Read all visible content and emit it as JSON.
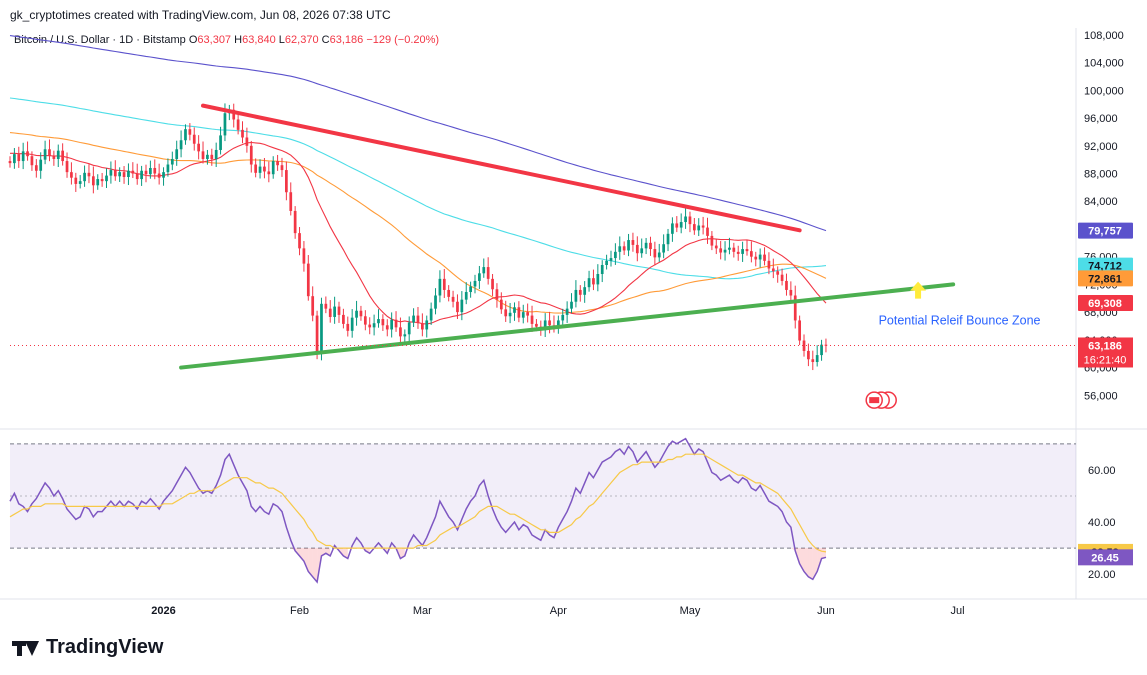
{
  "header": {
    "attribution": "gk_cryptotimes created with TradingView.com, Jun 08, 2026 07:38 UTC",
    "symbol": "Bitcoin / U.S. Dollar · 1D · Bitstamp",
    "open_label": "O",
    "open": "63,307",
    "high_label": "H",
    "high": "63,840",
    "low_label": "L",
    "low": "62,370",
    "close_label": "C",
    "close": "63,186",
    "change": "−129 (−0.20%)"
  },
  "brand": {
    "name": "TradingView",
    "icon": "tradingview-logo-icon"
  },
  "chart_data": [
    {
      "type": "candlestick",
      "title": "Bitcoin / U.S. Dollar · 1D · Bitstamp",
      "ylim": [
        52000,
        109000
      ],
      "y_ticks": [
        56000,
        60000,
        64000,
        68000,
        72000,
        76000,
        80000,
        84000,
        88000,
        92000,
        96000,
        100000,
        104000,
        108000
      ],
      "y_tick_labels": [
        "56,000",
        "60,000",
        "64,000",
        "68,000",
        "72,000",
        "76,000",
        "80,000",
        "84,000",
        "88,000",
        "92,000",
        "96,000",
        "100,000",
        "104,000",
        "108,000"
      ],
      "x_tick_labels": [
        "2026",
        "Feb",
        "Mar",
        "Apr",
        "May",
        "Jun",
        "Jul"
      ],
      "x_tick_dates": [
        "2026-01-01",
        "2026-02-01",
        "2026-03-01",
        "2026-04-01",
        "2026-05-01",
        "2026-06-01",
        "2026-07-01"
      ],
      "xlim": [
        "2025-11-27",
        "2026-07-28"
      ],
      "candle_start_date": "2025-11-27",
      "colors": {
        "up": "#089981",
        "down": "#f23645"
      },
      "closes": [
        89500,
        90800,
        89800,
        91200,
        90500,
        89200,
        88400,
        90000,
        91500,
        90600,
        90100,
        91300,
        89800,
        88200,
        87400,
        86500,
        86900,
        88100,
        87600,
        86300,
        87200,
        86900,
        87700,
        88500,
        87600,
        88200,
        87500,
        88400,
        88000,
        87200,
        88400,
        87900,
        88800,
        88000,
        87400,
        88200,
        89300,
        90100,
        91500,
        92800,
        94400,
        93600,
        92300,
        91200,
        90100,
        90700,
        90100,
        91400,
        93500,
        96700,
        97200,
        95800,
        94300,
        93200,
        92000,
        89300,
        88100,
        89000,
        88300,
        87900,
        89800,
        89200,
        88500,
        85300,
        82600,
        79400,
        77200,
        75000,
        70300,
        67500,
        62200,
        69200,
        68500,
        67300,
        68800,
        67600,
        66300,
        65300,
        67200,
        68200,
        67400,
        66200,
        65800,
        66400,
        67000,
        66100,
        65500,
        66900,
        65800,
        64500,
        64800,
        66500,
        67500,
        66400,
        65500,
        66800,
        68500,
        70400,
        72800,
        71200,
        70200,
        69500,
        68000,
        69800,
        70900,
        71700,
        72500,
        73600,
        74500,
        72800,
        71300,
        69800,
        68400,
        67400,
        67900,
        68700,
        67200,
        68000,
        67500,
        66300,
        65900,
        65400,
        66800,
        66100,
        65700,
        66800,
        67600,
        68500,
        69500,
        71200,
        70500,
        71600,
        72900,
        72000,
        73500,
        74800,
        75400,
        75800,
        76700,
        77500,
        76900,
        78400,
        77700,
        76500,
        77200,
        78000,
        77100,
        75900,
        76600,
        77800,
        79300,
        80800,
        80200,
        81000,
        81800,
        80700,
        79800,
        80500,
        80200,
        79000,
        77600,
        77200,
        76600,
        77000,
        77300,
        76700,
        76400,
        77100,
        76800,
        76000,
        75600,
        76300,
        75400,
        74300,
        73900,
        73400,
        72500,
        71200,
        70400,
        66800,
        63900,
        62400,
        61200,
        60800,
        61800,
        63300,
        63186
      ],
      "wick_high_total": [
        96500,
        63840
      ],
      "wick_low_total": [
        60000,
        62370
      ],
      "last_price": {
        "value": 63186,
        "label": "63,186",
        "countdown": "16:21:40",
        "color": "#f23645"
      },
      "moving_averages": [
        {
          "label": "79,757",
          "value": 79757,
          "color": "#5b52cc"
        },
        {
          "label": "74,712",
          "value": 74712,
          "color": "#4ddde7"
        },
        {
          "label": "72,861",
          "value": 72861,
          "color": "#ff9b38"
        },
        {
          "label": "69,308",
          "value": 69308,
          "color": "#f23645"
        }
      ],
      "trendlines": [
        {
          "color": "#f23645",
          "from": [
            "2026-01-10",
            97800
          ],
          "to": [
            "2026-05-26",
            79800
          ]
        },
        {
          "color": "#4caf50",
          "from": [
            "2026-01-05",
            60000
          ],
          "to": [
            "2026-06-30",
            72000
          ]
        }
      ],
      "annotation": {
        "text": "Potential Releif Bounce Zone",
        "color": "#2962ff",
        "date": "2026-06-13",
        "value": 66200
      },
      "arrow": {
        "color": "#ffeb3b",
        "icon": "arrow-up-icon"
      },
      "events_icon": "us-flag-events-icon"
    },
    {
      "type": "line",
      "series": [
        {
          "values": [
            48,
            51,
            47,
            46,
            44,
            47,
            49,
            52,
            55,
            53,
            50,
            52,
            49,
            45,
            43,
            41,
            42,
            46,
            45,
            42,
            44,
            44,
            46,
            48,
            46,
            48,
            46,
            48,
            47,
            45,
            48,
            47,
            49,
            47,
            45,
            48,
            50,
            52,
            55,
            58,
            61,
            59,
            56,
            53,
            51,
            52,
            51,
            54,
            58,
            64,
            66,
            62,
            58,
            55,
            52,
            46,
            44,
            46,
            44,
            43,
            47,
            46,
            44,
            38,
            33,
            29,
            27,
            25,
            21,
            19,
            17,
            27,
            28,
            27,
            31,
            29,
            27,
            26,
            31,
            34,
            32,
            29,
            28,
            30,
            32,
            30,
            28,
            32,
            30,
            26,
            27,
            32,
            35,
            33,
            31,
            34,
            38,
            42,
            48,
            45,
            42,
            40,
            37,
            41,
            45,
            48,
            50,
            54,
            56,
            50,
            45,
            41,
            38,
            36,
            38,
            40,
            37,
            39,
            38,
            35,
            34,
            33,
            37,
            35,
            34,
            38,
            41,
            44,
            48,
            53,
            51,
            55,
            59,
            57,
            60,
            63,
            64,
            65,
            67,
            68,
            66,
            69,
            67,
            63,
            65,
            67,
            64,
            61,
            63,
            66,
            69,
            71,
            70,
            71,
            72,
            69,
            66,
            68,
            67,
            63,
            59,
            58,
            56,
            57,
            58,
            56,
            55,
            57,
            56,
            53,
            52,
            54,
            51,
            48,
            47,
            46,
            44,
            40,
            38,
            29,
            24,
            21,
            19,
            18,
            21,
            26,
            26.45
          ],
          "color": "#7e57c2",
          "width": 1.5
        },
        {
          "values": [
            42,
            43,
            44,
            45,
            45,
            46,
            46,
            46,
            47,
            47,
            47,
            47,
            47,
            46,
            46,
            46,
            46,
            46,
            46,
            46,
            46,
            46,
            46,
            46,
            46,
            46,
            46,
            46,
            46,
            46,
            46,
            46,
            46,
            46,
            46,
            47,
            47,
            47,
            48,
            49,
            50,
            51,
            51,
            52,
            52,
            52,
            52,
            53,
            54,
            55,
            56,
            57,
            57,
            57,
            57,
            56,
            55,
            55,
            54,
            53,
            53,
            52,
            51,
            49,
            47,
            45,
            43,
            41,
            38,
            36,
            33,
            32,
            31,
            31,
            30,
            30,
            30,
            30,
            30,
            30,
            30,
            30,
            30,
            30,
            30,
            30,
            30,
            30,
            30,
            30,
            30,
            30,
            30,
            31,
            31,
            31,
            32,
            33,
            35,
            36,
            37,
            38,
            38,
            39,
            40,
            41,
            42,
            44,
            45,
            46,
            46,
            46,
            45,
            44,
            43,
            43,
            42,
            41,
            40,
            39,
            38,
            37,
            37,
            36,
            36,
            36,
            37,
            38,
            39,
            41,
            42,
            44,
            46,
            47,
            49,
            51,
            53,
            55,
            57,
            59,
            60,
            61,
            62,
            62,
            63,
            63,
            63,
            63,
            63,
            63,
            64,
            64,
            65,
            65,
            66,
            66,
            66,
            66,
            66,
            65,
            64,
            63,
            62,
            61,
            60,
            59,
            58,
            58,
            57,
            56,
            55,
            55,
            54,
            53,
            52,
            51,
            49,
            47,
            45,
            42,
            39,
            36,
            33,
            31,
            29.5,
            28.8,
            28.53
          ],
          "color": "#f7c948",
          "width": 1.2
        }
      ],
      "ylim": [
        12,
        73
      ],
      "y_ticks": [
        20,
        40,
        60
      ],
      "y_tick_labels": [
        "20.00",
        "40.00",
        "60.00"
      ],
      "band": [
        30,
        70
      ],
      "midline": 50,
      "value_labels": [
        {
          "label": "28.53",
          "value": 28.53,
          "color": "#f7c948"
        },
        {
          "label": "26.45",
          "value": 26.45,
          "color": "#7e57c2"
        }
      ]
    }
  ]
}
